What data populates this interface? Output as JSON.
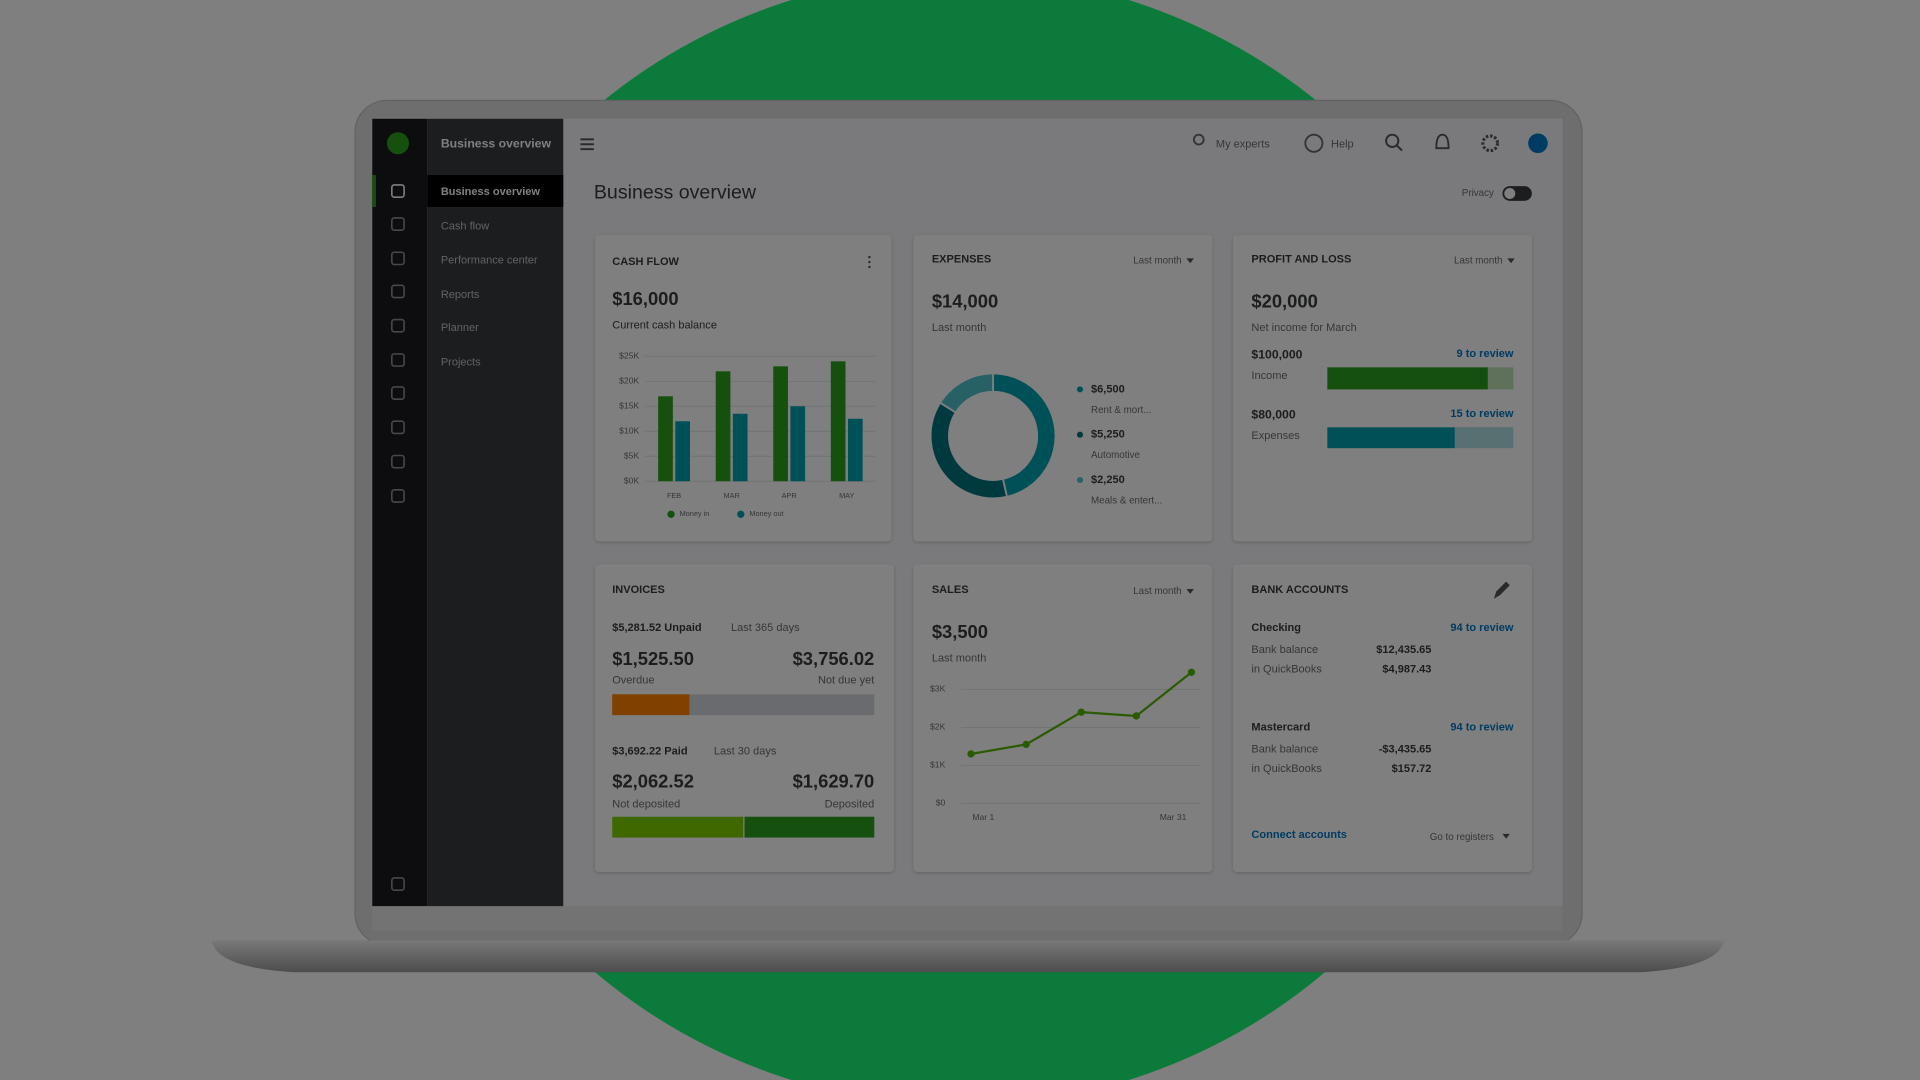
{
  "sidebar": {
    "title": "Business overview",
    "items": [
      "Business overview",
      "Cash flow",
      "Performance center",
      "Reports",
      "Planner",
      "Projects"
    ]
  },
  "topbar": {
    "my_experts": "My experts",
    "help": "Help"
  },
  "page": {
    "title": "Business overview",
    "privacy": "Privacy"
  },
  "cards": {
    "cash_flow": {
      "title": "CASH FLOW",
      "amount": "$16,000",
      "caption": "Current cash balance"
    },
    "expenses": {
      "title": "EXPENSES",
      "period": "Last month",
      "amount": "$14,000",
      "caption": "Last month"
    },
    "profit_loss": {
      "title": "PROFIT AND LOSS",
      "period": "Last month",
      "amount": "$20,000",
      "caption": "Net income for March",
      "income_amount": "$100,000",
      "income_label": "Income",
      "income_review": "9 to review",
      "expenses_amount": "$80,000",
      "expenses_label": "Expenses",
      "expenses_review": "15 to review"
    },
    "invoices": {
      "title": "INVOICES",
      "unpaid": "$5,281.52 Unpaid",
      "unpaid_period": "Last 365 days",
      "overdue_amount": "$1,525.50",
      "overdue_label": "Overdue",
      "not_due_amount": "$3,756.02",
      "not_due_label": "Not due yet",
      "paid": "$3,692.22 Paid",
      "paid_period": "Last 30 days",
      "not_deposited_amount": "$2,062.52",
      "not_deposited_label": "Not deposited",
      "deposited_amount": "$1,629.70",
      "deposited_label": "Deposited"
    },
    "sales": {
      "title": "SALES",
      "period": "Last month",
      "amount": "$3,500",
      "caption": "Last month"
    },
    "bank_accounts": {
      "title": "BANK ACCOUNTS",
      "accounts": [
        {
          "name": "Checking",
          "review": "94 to review",
          "bank_label": "Bank balance",
          "bank_amount": "$12,435.65",
          "qb_label": "in QuickBooks",
          "qb_amount": "$4,987.43"
        },
        {
          "name": "Mastercard",
          "review": "94 to review",
          "bank_label": "Bank balance",
          "bank_amount": "-$3,435.65",
          "qb_label": "in QuickBooks",
          "qb_amount": "$157.72"
        }
      ],
      "connect": "Connect accounts",
      "registers": "Go to registers"
    }
  },
  "chart_data": [
    {
      "type": "bar",
      "categories": [
        "FEB",
        "MAR",
        "APR",
        "MAY"
      ],
      "series": [
        {
          "name": "Money in",
          "color": "#2ca01c",
          "values": [
            17,
            22,
            23,
            24
          ]
        },
        {
          "name": "Money out",
          "color": "#00a0b0",
          "values": [
            12,
            13.5,
            15,
            12.5
          ]
        }
      ],
      "ylim": [
        0,
        25
      ],
      "yticks": [
        {
          "value": 0,
          "label": "$0K"
        },
        {
          "value": 5,
          "label": "$5K"
        },
        {
          "value": 10,
          "label": "$10K"
        },
        {
          "value": 15,
          "label": "$15K"
        },
        {
          "value": 20,
          "label": "$20K"
        },
        {
          "value": 25,
          "label": "$25K"
        }
      ],
      "grid": true
    },
    {
      "type": "pie",
      "categories": [
        "Rent & mort...",
        "Automotive",
        "Meals & entert..."
      ],
      "values": [
        6500,
        5250,
        2250
      ],
      "value_labels": [
        "$6,500",
        "$5,250",
        "$2,250"
      ],
      "colors": [
        "#00a0b0",
        "#00747f",
        "#4fc3cc"
      ]
    },
    {
      "type": "line",
      "categories": [
        "Mar 1",
        null,
        null,
        null,
        "Mar 31"
      ],
      "values": [
        1.3,
        1.55,
        2.4,
        2.3,
        3.45
      ],
      "color": "#53b700",
      "ylim": [
        0,
        3.5
      ],
      "yticks": [
        {
          "value": 0,
          "label": "$0"
        },
        {
          "value": 1,
          "label": "$1K"
        },
        {
          "value": 2,
          "label": "$2K"
        },
        {
          "value": 3,
          "label": "$3K"
        }
      ],
      "grid": true
    }
  ]
}
